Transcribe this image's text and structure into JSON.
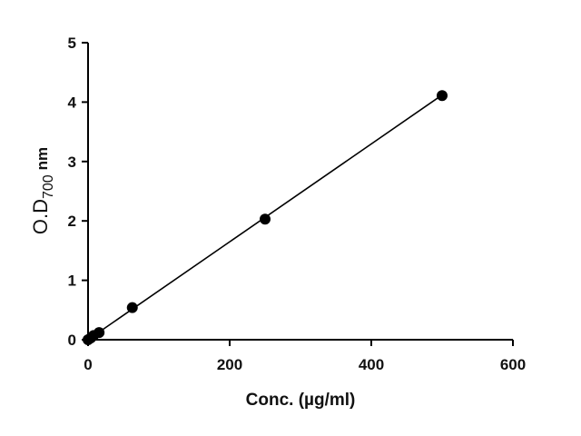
{
  "chart_data": {
    "type": "scatter",
    "title": "",
    "xlabel": "Conc. (µg/ml)",
    "ylabel": {
      "main": "O.D",
      "subscript": "700",
      "unit": "nm"
    },
    "xlim": [
      0,
      600
    ],
    "ylim": [
      0,
      5
    ],
    "xticks": [
      0,
      200,
      400,
      600
    ],
    "yticks": [
      0,
      1,
      2,
      3,
      4,
      5
    ],
    "grid": false,
    "legend": "none",
    "series": [
      {
        "x": [
          0,
          3.9,
          7.8,
          15.6,
          62.5,
          250,
          500
        ],
        "y": [
          0.0,
          0.03,
          0.07,
          0.12,
          0.54,
          2.03,
          4.11
        ]
      }
    ],
    "fit_line": {
      "x": [
        0,
        500
      ],
      "y": [
        0.0,
        4.12
      ]
    },
    "colors": {
      "axis": "#000000",
      "marker": "#000000",
      "line": "#000000"
    }
  }
}
